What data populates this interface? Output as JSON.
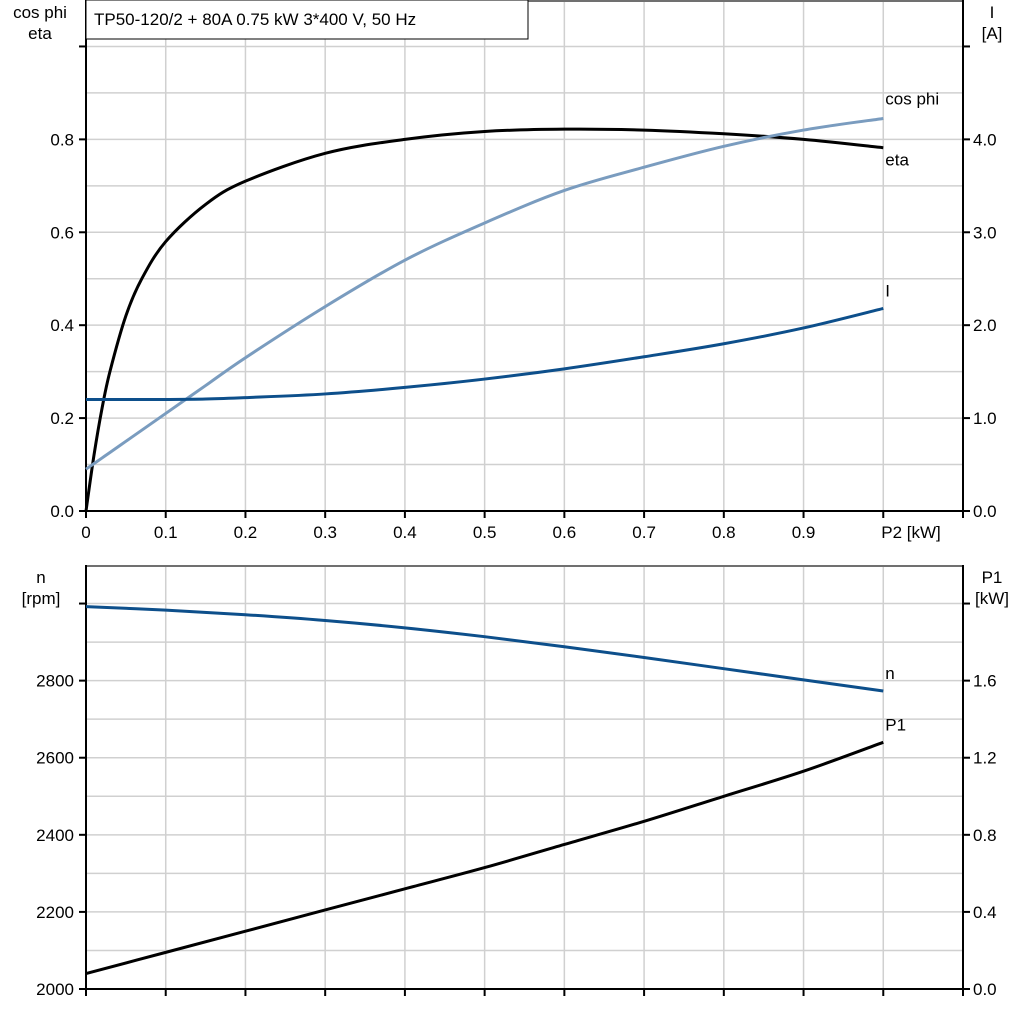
{
  "chart_data": [
    {
      "type": "line",
      "title": "TP50-120/2 + 80A   0.75 kW   3*400 V, 50 Hz",
      "xlabel": "P2 [kW]",
      "ylabel_left": [
        "cos phi",
        "eta"
      ],
      "ylabel_right": [
        "I",
        "[A]"
      ],
      "xlim": [
        0,
        1.1
      ],
      "ylim_left": [
        0,
        1.1
      ],
      "ylim_right": [
        0,
        5.5
      ],
      "grid": true,
      "x_ticks": [
        "0",
        "0.1",
        "0.2",
        "0.3",
        "0.4",
        "0.5",
        "0.6",
        "0.7",
        "0.8",
        "0.9"
      ],
      "y_ticks_left": [
        "0.0",
        "0.2",
        "0.4",
        "0.6",
        "0.8"
      ],
      "y_ticks_right": [
        "0.0",
        "1.0",
        "2.0",
        "3.0",
        "4.0"
      ],
      "x": [
        0,
        0.01,
        0.02,
        0.03,
        0.05,
        0.07,
        0.1,
        0.15,
        0.2,
        0.3,
        0.4,
        0.5,
        0.6,
        0.7,
        0.8,
        0.9,
        1.0
      ],
      "series": [
        {
          "name": "eta",
          "axis": "left",
          "color": "#000000",
          "values": [
            0,
            0.12,
            0.22,
            0.3,
            0.42,
            0.5,
            0.58,
            0.66,
            0.71,
            0.77,
            0.8,
            0.817,
            0.822,
            0.82,
            0.812,
            0.8,
            0.782
          ]
        },
        {
          "name": "cos phi",
          "axis": "left",
          "color": "#7a9cbf",
          "values": [
            0.09,
            0.102,
            0.114,
            0.126,
            0.15,
            0.174,
            0.21,
            0.27,
            0.33,
            0.44,
            0.54,
            0.62,
            0.69,
            0.74,
            0.785,
            0.82,
            0.845
          ]
        },
        {
          "name": "I",
          "axis": "right",
          "color": "#0d4f8b",
          "values": [
            1.2,
            1.2,
            1.2,
            1.2,
            1.2,
            1.2,
            1.2,
            1.205,
            1.22,
            1.26,
            1.33,
            1.42,
            1.53,
            1.66,
            1.8,
            1.97,
            2.18
          ]
        }
      ]
    },
    {
      "type": "line",
      "xlim": [
        0,
        1.1
      ],
      "ylabel_left": [
        "n",
        "[rpm]"
      ],
      "ylabel_right": [
        "P1",
        "[kW]"
      ],
      "ylim_left": [
        2000,
        3100
      ],
      "ylim_right": [
        0,
        2.2
      ],
      "grid": true,
      "y_ticks_left": [
        "2000",
        "2200",
        "2400",
        "2600",
        "2800"
      ],
      "y_ticks_right": [
        "0.0",
        "0.4",
        "0.8",
        "1.2",
        "1.6"
      ],
      "x": [
        0,
        0.1,
        0.2,
        0.3,
        0.4,
        0.5,
        0.6,
        0.7,
        0.8,
        0.9,
        1.0
      ],
      "series": [
        {
          "name": "n",
          "axis": "left",
          "color": "#0d4f8b",
          "values": [
            2992,
            2983,
            2971,
            2956,
            2937,
            2914,
            2888,
            2860,
            2831,
            2802,
            2773
          ]
        },
        {
          "name": "P1",
          "axis": "right",
          "color": "#000000",
          "values": [
            0.08,
            0.19,
            0.3,
            0.41,
            0.52,
            0.63,
            0.75,
            0.87,
            1.0,
            1.13,
            1.28
          ]
        }
      ]
    }
  ]
}
